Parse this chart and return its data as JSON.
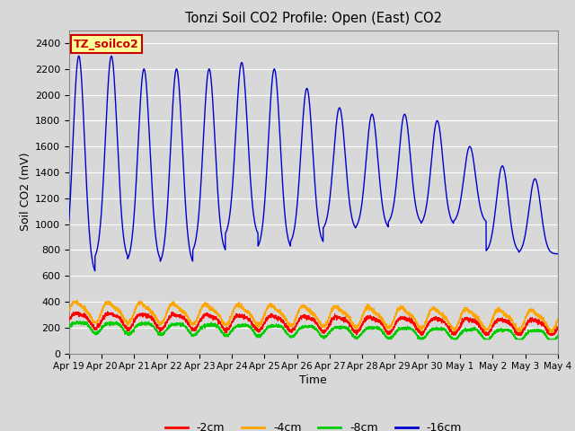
{
  "title": "Tonzi Soil CO2 Profile: Open (East) CO2",
  "xlabel": "Time",
  "ylabel": "Soil CO2 (mV)",
  "label_box_text": "TZ_soilco2",
  "label_box_facecolor": "#FFFF99",
  "label_box_edgecolor": "#CC0000",
  "label_box_textcolor": "#CC0000",
  "ylim": [
    0,
    2500
  ],
  "yticks": [
    0,
    200,
    400,
    600,
    800,
    1000,
    1200,
    1400,
    1600,
    1800,
    2000,
    2200,
    2400
  ],
  "background_color": "#D8D8D8",
  "grid_color": "#FFFFFF",
  "colors": {
    "-2cm": "#FF0000",
    "-4cm": "#FFA500",
    "-8cm": "#00CC00",
    "-16cm": "#0000CC"
  },
  "legend_labels": [
    "-2cm",
    "-4cm",
    "-8cm",
    "-16cm"
  ],
  "n_days": 15,
  "x_tick_labels": [
    "Apr 19",
    "Apr 20",
    "Apr 21",
    "Apr 22",
    "Apr 23",
    "Apr 24",
    "Apr 25",
    "Apr 26",
    "Apr 27",
    "Apr 28",
    "Apr 29",
    "Apr 30",
    "May 1",
    "May 2",
    "May 3",
    "May 4"
  ]
}
